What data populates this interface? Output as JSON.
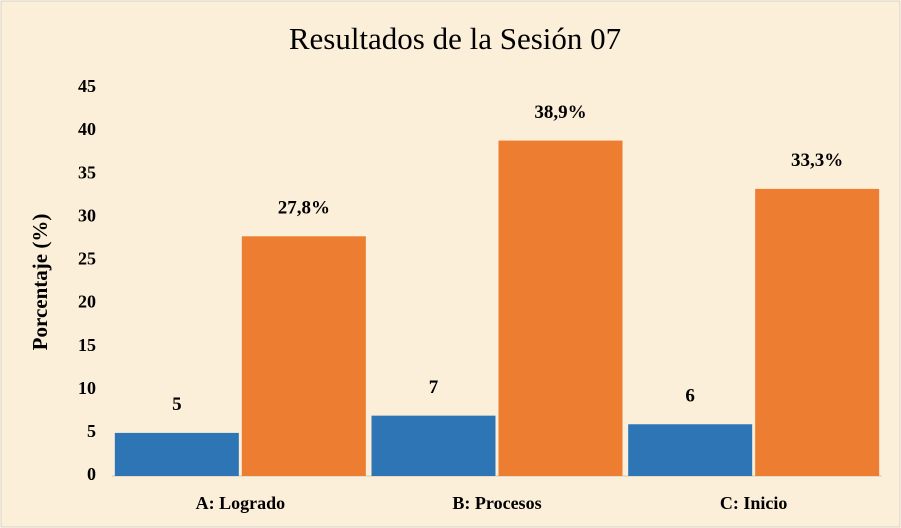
{
  "chart_data": {
    "type": "bar",
    "title": "Resultados de la Sesión 07",
    "ylabel": "Porcentaje (%)",
    "categories": [
      "A: Logrado",
      "B: Procesos",
      "C: Inicio"
    ],
    "series": [
      {
        "color": "#2e75b6",
        "values": [
          5,
          7,
          6
        ]
      },
      {
        "color": "#ed7d31",
        "values": [
          27.8,
          38.9,
          33.3
        ],
        "value_labels": [
          "27,8%",
          "38,9%",
          "33,3%"
        ]
      }
    ],
    "ylim": [
      0,
      45
    ],
    "yticks": [
      0,
      5,
      10,
      15,
      20,
      25,
      30,
      35,
      40,
      45
    ],
    "grid": false
  }
}
